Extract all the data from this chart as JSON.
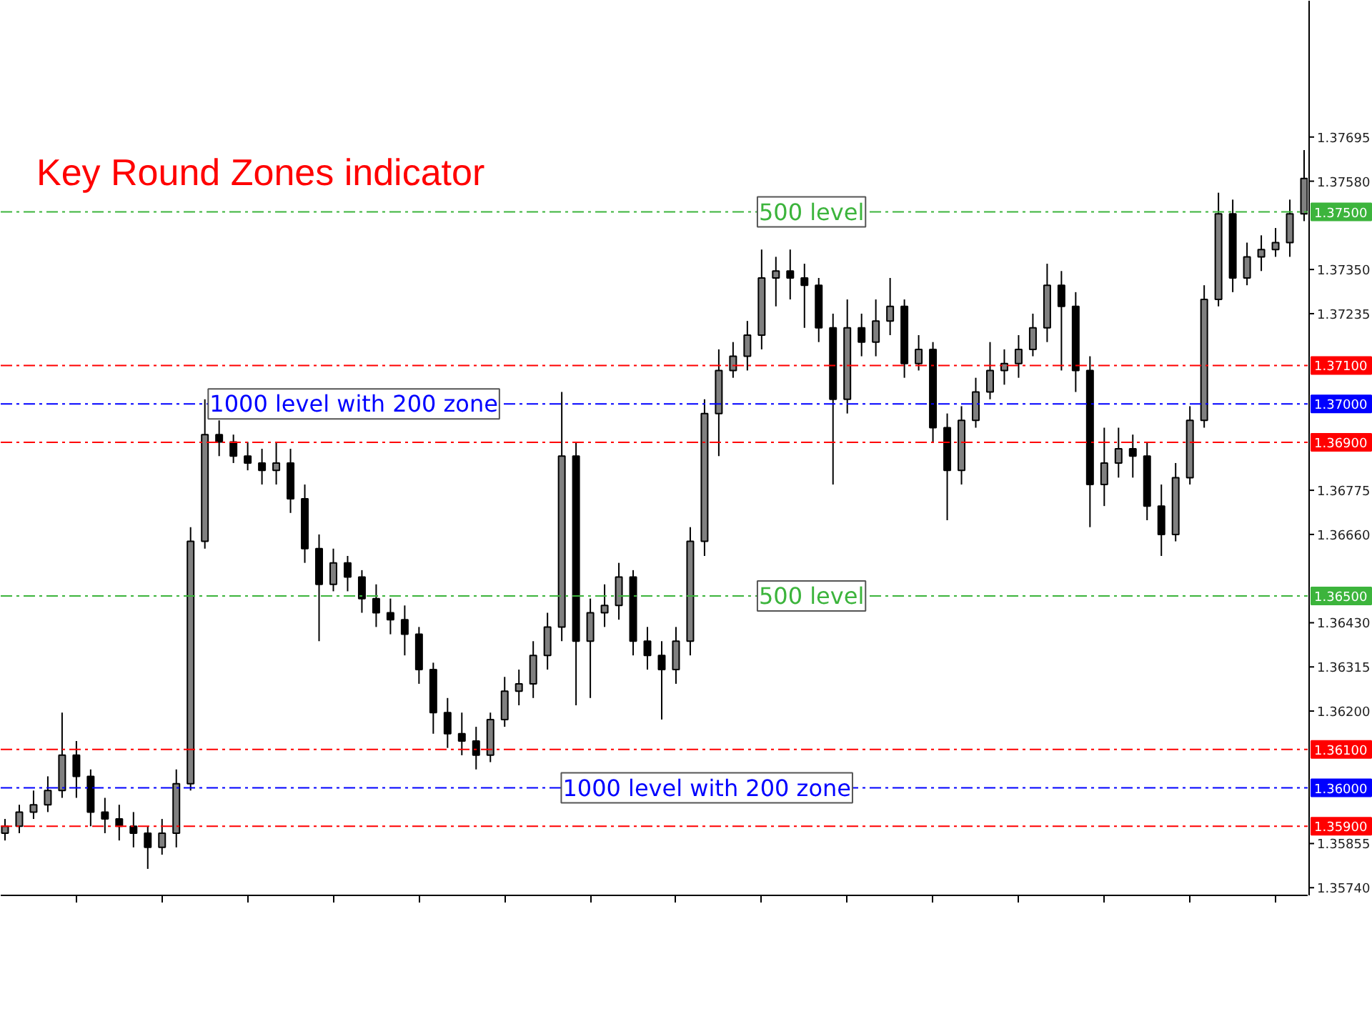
{
  "chart_data": {
    "type": "candlestick",
    "title": "Key Round Zones indicator",
    "categories": [
      null,
      null,
      null,
      null,
      null,
      null,
      null,
      null,
      null,
      null,
      null,
      null,
      null,
      null,
      null,
      null,
      null,
      null,
      null,
      null,
      null,
      null,
      null,
      null,
      null,
      null,
      null,
      null,
      null,
      null,
      null,
      null,
      null,
      null,
      null,
      null,
      null,
      null,
      null,
      null,
      null,
      null,
      null,
      null,
      null,
      null,
      null,
      null,
      null,
      null,
      null,
      null,
      null,
      null,
      null,
      null,
      null,
      null,
      null,
      null,
      null,
      null,
      null,
      null,
      null,
      null,
      null,
      null,
      null,
      null,
      null,
      null,
      null,
      null,
      null,
      null,
      null,
      null,
      null,
      null,
      null,
      null,
      null,
      null,
      null,
      null,
      null,
      null,
      null,
      null,
      null,
      null
    ],
    "ohlc": [
      [
        1.35882,
        1.35919,
        1.35863,
        1.359
      ],
      [
        1.359,
        1.35956,
        1.35882,
        1.35937
      ],
      [
        1.35937,
        1.35993,
        1.35919,
        1.35956
      ],
      [
        1.35956,
        1.3603,
        1.35937,
        1.35993
      ],
      [
        1.35993,
        1.36196,
        1.35974,
        1.36085
      ],
      [
        1.36085,
        1.36122,
        1.35974,
        1.3603
      ],
      [
        1.3603,
        1.36048,
        1.359,
        1.35937
      ],
      [
        1.35937,
        1.35974,
        1.35882,
        1.35919
      ],
      [
        1.35919,
        1.35956,
        1.35863,
        1.359
      ],
      [
        1.359,
        1.35937,
        1.35845,
        1.35882
      ],
      [
        1.35882,
        1.359,
        1.35789,
        1.35845
      ],
      [
        1.35845,
        1.35919,
        1.35826,
        1.35882
      ],
      [
        1.35882,
        1.36048,
        1.35845,
        1.36011
      ],
      [
        1.36011,
        1.36679,
        1.35993,
        1.36642
      ],
      [
        1.36642,
        1.37012,
        1.36623,
        1.3692
      ],
      [
        1.3692,
        1.36957,
        1.36864,
        1.36901
      ],
      [
        1.36901,
        1.3692,
        1.36846,
        1.36864
      ],
      [
        1.36864,
        1.36901,
        1.36827,
        1.36846
      ],
      [
        1.36846,
        1.36883,
        1.3679,
        1.36827
      ],
      [
        1.36827,
        1.36901,
        1.3679,
        1.36846
      ],
      [
        1.36846,
        1.36883,
        1.36716,
        1.36753
      ],
      [
        1.36753,
        1.3679,
        1.36586,
        1.36623
      ],
      [
        1.36623,
        1.3666,
        1.36382,
        1.3653
      ],
      [
        1.3653,
        1.36623,
        1.36512,
        1.36586
      ],
      [
        1.36586,
        1.36604,
        1.36512,
        1.36549
      ],
      [
        1.36549,
        1.36567,
        1.36456,
        1.36493
      ],
      [
        1.36493,
        1.3653,
        1.36419,
        1.36456
      ],
      [
        1.36456,
        1.36493,
        1.364,
        1.36438
      ],
      [
        1.36438,
        1.36475,
        1.36345,
        1.364
      ],
      [
        1.364,
        1.36419,
        1.36271,
        1.36308
      ],
      [
        1.36308,
        1.36326,
        1.36141,
        1.36196
      ],
      [
        1.36196,
        1.36234,
        1.36104,
        1.36141
      ],
      [
        1.36141,
        1.36196,
        1.36085,
        1.36122
      ],
      [
        1.36122,
        1.36159,
        1.36048,
        1.36085
      ],
      [
        1.36085,
        1.36196,
        1.36067,
        1.36178
      ],
      [
        1.36178,
        1.36289,
        1.36159,
        1.36252
      ],
      [
        1.36252,
        1.36308,
        1.36215,
        1.36271
      ],
      [
        1.36271,
        1.36382,
        1.36234,
        1.36345
      ],
      [
        1.36345,
        1.36456,
        1.36308,
        1.36419
      ],
      [
        1.36419,
        1.37031,
        1.36382,
        1.36864
      ],
      [
        1.36864,
        1.36901,
        1.36215,
        1.36382
      ],
      [
        1.36382,
        1.36493,
        1.36234,
        1.36456
      ],
      [
        1.36456,
        1.3653,
        1.36419,
        1.36475
      ],
      [
        1.36475,
        1.36586,
        1.36438,
        1.36549
      ],
      [
        1.36549,
        1.36567,
        1.36345,
        1.36382
      ],
      [
        1.36382,
        1.36419,
        1.36308,
        1.36345
      ],
      [
        1.36345,
        1.36382,
        1.36178,
        1.36308
      ],
      [
        1.36308,
        1.36419,
        1.36271,
        1.36382
      ],
      [
        1.36382,
        1.36679,
        1.36345,
        1.36642
      ],
      [
        1.36642,
        1.37012,
        1.36604,
        1.36975
      ],
      [
        1.36975,
        1.37142,
        1.36864,
        1.37087
      ],
      [
        1.37087,
        1.37161,
        1.37068,
        1.37124
      ],
      [
        1.37124,
        1.37216,
        1.37087,
        1.37179
      ],
      [
        1.37179,
        1.37402,
        1.37142,
        1.37328
      ],
      [
        1.37328,
        1.37383,
        1.37254,
        1.37346
      ],
      [
        1.37346,
        1.37402,
        1.37272,
        1.37328
      ],
      [
        1.37328,
        1.37365,
        1.37198,
        1.37309
      ],
      [
        1.37309,
        1.37328,
        1.37161,
        1.37198
      ],
      [
        1.37198,
        1.37235,
        1.3679,
        1.37012
      ],
      [
        1.37012,
        1.37272,
        1.36975,
        1.37198
      ],
      [
        1.37198,
        1.37235,
        1.37124,
        1.37161
      ],
      [
        1.37161,
        1.37272,
        1.37124,
        1.37216
      ],
      [
        1.37216,
        1.37328,
        1.37179,
        1.37254
      ],
      [
        1.37254,
        1.37272,
        1.37068,
        1.37105
      ],
      [
        1.37105,
        1.37179,
        1.37087,
        1.37142
      ],
      [
        1.37142,
        1.37161,
        1.36901,
        1.36938
      ],
      [
        1.36938,
        1.36975,
        1.36697,
        1.36827
      ],
      [
        1.36827,
        1.36994,
        1.3679,
        1.36957
      ],
      [
        1.36957,
        1.37068,
        1.36938,
        1.37031
      ],
      [
        1.37031,
        1.37161,
        1.37012,
        1.37087
      ],
      [
        1.37087,
        1.37142,
        1.3705,
        1.37105
      ],
      [
        1.37105,
        1.37179,
        1.37068,
        1.37142
      ],
      [
        1.37142,
        1.37235,
        1.37124,
        1.37198
      ],
      [
        1.37198,
        1.37365,
        1.37161,
        1.37309
      ],
      [
        1.37309,
        1.37346,
        1.37087,
        1.37254
      ],
      [
        1.37254,
        1.37291,
        1.37031,
        1.37087
      ],
      [
        1.37087,
        1.37124,
        1.36679,
        1.3679
      ],
      [
        1.3679,
        1.36938,
        1.36734,
        1.36846
      ],
      [
        1.36846,
        1.36938,
        1.36808,
        1.36883
      ],
      [
        1.36883,
        1.3692,
        1.36808,
        1.36864
      ],
      [
        1.36864,
        1.36901,
        1.36697,
        1.36734
      ],
      [
        1.36734,
        1.3679,
        1.36604,
        1.3666
      ],
      [
        1.3666,
        1.36846,
        1.36642,
        1.36808
      ],
      [
        1.36808,
        1.36994,
        1.3679,
        1.36957
      ],
      [
        1.36957,
        1.37309,
        1.36938,
        1.37272
      ],
      [
        1.37272,
        1.3755,
        1.37254,
        1.37495
      ],
      [
        1.37495,
        1.37532,
        1.37291,
        1.37328
      ],
      [
        1.37328,
        1.3742,
        1.37309,
        1.37383
      ],
      [
        1.37383,
        1.37439,
        1.37346,
        1.37402
      ],
      [
        1.37402,
        1.37458,
        1.37383,
        1.3742
      ],
      [
        1.3742,
        1.37532,
        1.37383,
        1.37495
      ],
      [
        1.37495,
        1.37661,
        1.37476,
        1.37587
      ]
    ],
    "ylim": [
      1.3572,
      1.3805
    ],
    "annotations": [
      {
        "text": "500 level",
        "y": 1.375
      },
      {
        "text": "1000 level with 200 zone",
        "y": 1.37
      },
      {
        "text": "500 level",
        "y": 1.365
      },
      {
        "text": "1000 level with 200 zone",
        "y": 1.36
      }
    ],
    "yticks": [
      {
        "value": 1.3574,
        "label": "1.35740"
      },
      1.35855,
      {
        "value": 1.362,
        "label": "1.36200"
      },
      1.36315,
      {
        "value": 1.3643,
        "label": "1.36430"
      },
      {
        "value": 1.3666,
        "label": "1.36660"
      },
      1.36775,
      1.37235,
      {
        "value": 1.3735,
        "label": "1.37350"
      },
      {
        "value": 1.3758,
        "label": "1.37580"
      },
      1.37695
    ],
    "ref_lines": [
      {
        "axis": "y",
        "value": 1.375,
        "label": "1.37500",
        "color": "#3cb43c",
        "line_style": "dashdot"
      },
      {
        "axis": "y",
        "value": 1.371,
        "label": "1.37100",
        "color": "#ff0000",
        "line_style": "dashdot"
      },
      {
        "axis": "y",
        "value": 1.37,
        "label": "1.37000",
        "color": "#0000ff",
        "line_style": "dashdot"
      },
      {
        "axis": "y",
        "value": 1.369,
        "label": "1.36900",
        "color": "#ff0000",
        "line_style": "dashdot"
      },
      {
        "axis": "y",
        "value": 1.365,
        "label": "1.36500",
        "color": "#3cb43c",
        "line_style": "dashdot"
      },
      {
        "axis": "y",
        "value": 1.361,
        "label": "1.36100",
        "color": "#ff0000",
        "line_style": "dashdot"
      },
      {
        "axis": "y",
        "value": 1.36,
        "label": "1.36000",
        "color": "#0000ff",
        "line_style": "dashdot"
      },
      {
        "axis": "y",
        "value": 1.359,
        "label": "1.35900",
        "color": "#ff0000",
        "line_style": "dashdot"
      }
    ]
  }
}
